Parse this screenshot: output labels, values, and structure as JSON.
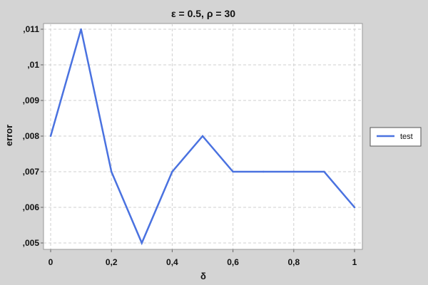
{
  "chart_data": {
    "type": "line",
    "title": "ε = 0.5, ρ = 30",
    "xlabel": "δ",
    "ylabel": "error",
    "xlim": [
      0,
      1
    ],
    "ylim": [
      0.005,
      0.011
    ],
    "x_ticks": [
      0,
      0.2,
      0.4,
      0.6,
      0.8,
      1
    ],
    "x_tick_labels": [
      "0",
      "0,2",
      "0,4",
      "0,6",
      "0,8",
      "1"
    ],
    "y_ticks": [
      0.005,
      0.006,
      0.007,
      0.008,
      0.009,
      0.01,
      0.011
    ],
    "y_tick_labels": [
      ",005",
      ",006",
      ",007",
      ",008",
      ",009",
      ",01",
      ",011"
    ],
    "grid": true,
    "legend_position": "right",
    "series": [
      {
        "name": "test",
        "color": "#4a72e0",
        "x": [
          0,
          0.1,
          0.2,
          0.3,
          0.4,
          0.5,
          0.6,
          0.7,
          0.8,
          0.9,
          1.0
        ],
        "y": [
          0.008,
          0.011,
          0.007,
          0.005,
          0.007,
          0.008,
          0.007,
          0.007,
          0.007,
          0.007,
          0.006
        ]
      }
    ]
  }
}
